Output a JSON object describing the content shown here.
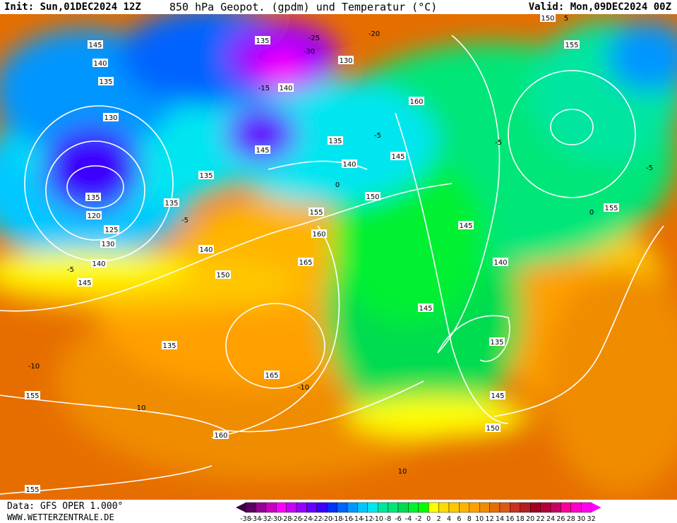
{
  "header": {
    "init": "Init: Sun,01DEC2024 12Z",
    "title": "850 hPa Geopot. (gpdm) und Temperatur (°C)",
    "valid": "Valid: Mon,09DEC2024 00Z"
  },
  "footer": {
    "source": "Data: GFS OPER 1.000°",
    "website": "WWW.WETTERZENTRALE.DE"
  },
  "map": {
    "contour_labels": [
      "145",
      "140",
      "135",
      "130",
      "135",
      "120",
      "125",
      "130",
      "135",
      "135",
      "140",
      "145",
      "135",
      "140",
      "150",
      "155",
      "160",
      "165",
      "145",
      "140",
      "145",
      "150",
      "155",
      "160",
      "135",
      "145",
      "140",
      "135",
      "145",
      "150",
      "155",
      "165",
      "160",
      "155",
      "150",
      "135",
      "145",
      "155",
      "130",
      "140"
    ],
    "isotherm_labels": [
      "-5",
      "-5",
      "-10",
      "-10",
      "10",
      "10",
      "-5",
      "-20",
      "-25",
      "-30",
      "-15",
      "-5",
      "-5",
      "0",
      "0",
      "5"
    ]
  },
  "legend": {
    "ticks": [
      "-38",
      "-34",
      "-32",
      "-30",
      "-28",
      "-26",
      "-24",
      "-22",
      "-20",
      "-18",
      "-16",
      "-14",
      "-12",
      "-10",
      "-8",
      "-6",
      "-4",
      "-2",
      "0",
      "2",
      "4",
      "6",
      "8",
      "10",
      "12",
      "14",
      "16",
      "18",
      "20",
      "22",
      "24",
      "26",
      "28",
      "30",
      "32"
    ],
    "colors": [
      "#5a0060",
      "#960096",
      "#c800c0",
      "#ff00ff",
      "#c800f5",
      "#9600ff",
      "#6400ff",
      "#3c00ff",
      "#0032ff",
      "#0064ff",
      "#0096ff",
      "#00c8ff",
      "#00e6f0",
      "#00e6a0",
      "#00e678",
      "#00dc50",
      "#00f032",
      "#00ff00",
      "#ffff00",
      "#ffdc00",
      "#ffc800",
      "#ffb400",
      "#ffa000",
      "#f08c00",
      "#e66e00",
      "#dc5a14",
      "#c8321e",
      "#b41e1e",
      "#a0001e",
      "#b40037",
      "#c80064",
      "#ff0096",
      "#ff00c8",
      "#ff00f0"
    ],
    "min_arrow_color": "#3c0040",
    "max_arrow_color": "#ff00ff"
  }
}
